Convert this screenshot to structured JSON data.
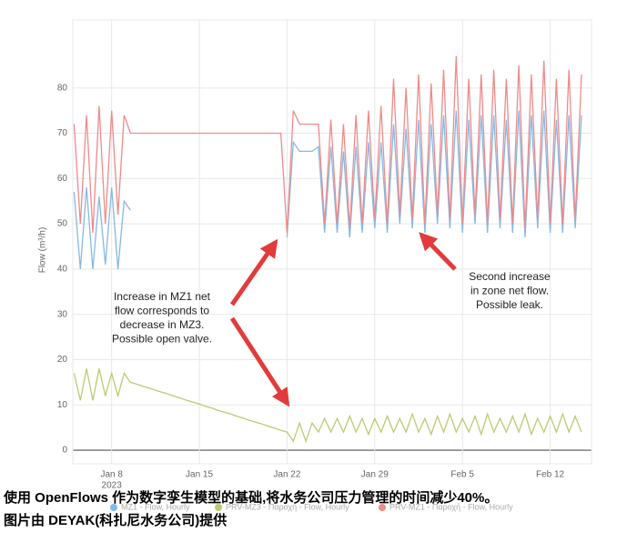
{
  "chart_data": {
    "type": "line",
    "y_label": "Flow (m³/h)",
    "x": [
      5,
      5.5,
      6,
      6.5,
      7,
      7.5,
      8,
      8.5,
      9,
      9.5,
      10,
      10.5,
      11,
      11.5,
      12,
      12.5,
      13,
      13.5,
      14,
      14.5,
      15,
      15.5,
      16,
      16.5,
      17,
      17.5,
      18,
      18.5,
      19,
      19.5,
      20,
      20.5,
      21,
      21.5,
      22,
      22.5,
      23,
      23.5,
      24,
      24.5,
      25,
      25.5,
      26,
      26.5,
      27,
      27.5,
      28,
      28.5,
      29,
      29.5,
      30,
      30.5,
      31,
      31.5,
      32,
      32.5,
      33,
      33.5,
      34,
      34.5,
      35,
      35.5,
      36,
      36.5,
      37,
      37.5,
      38,
      38.5,
      39,
      39.5,
      40,
      40.5,
      41,
      41.5,
      42,
      42.5,
      43,
      43.5,
      44,
      44.5,
      45,
      45.5
    ],
    "series": [
      {
        "name": "MZ1 - Flow, Hourly",
        "color": "#86b9e3",
        "values": [
          57,
          40,
          58,
          40,
          56,
          41,
          58,
          40,
          55,
          53,
          null,
          null,
          null,
          null,
          null,
          null,
          null,
          null,
          null,
          null,
          null,
          null,
          null,
          null,
          null,
          null,
          null,
          null,
          null,
          null,
          null,
          null,
          null,
          null,
          47,
          68,
          66,
          66,
          66,
          67,
          48,
          67,
          48,
          66,
          47,
          67,
          48,
          68,
          49,
          68,
          48,
          72,
          50,
          71,
          49,
          73,
          48,
          72,
          50,
          74,
          49,
          75,
          48,
          73,
          50,
          74,
          48,
          74,
          49,
          73,
          48,
          75,
          47,
          74,
          49,
          75,
          48,
          73,
          48,
          74,
          49,
          74
        ]
      },
      {
        "name": "PRV-MZ3 - Παροχή - Flow, Hourly",
        "color": "#b9cc72",
        "values": [
          17,
          11,
          18,
          11,
          18,
          12,
          17,
          12,
          17,
          15,
          14.6,
          14.1,
          13.7,
          13.2,
          12.8,
          12.4,
          11.9,
          11.5,
          11.0,
          10.6,
          10.2,
          9.7,
          9.3,
          8.8,
          8.4,
          8.0,
          7.5,
          7.1,
          6.6,
          6.2,
          5.8,
          5.3,
          4.9,
          4.4,
          4,
          2,
          6,
          2,
          6,
          4,
          7,
          4,
          7,
          4,
          7.5,
          4,
          7,
          3.5,
          7,
          4,
          7.5,
          4,
          7,
          4,
          8,
          4,
          7,
          3.5,
          7.5,
          4,
          8,
          4,
          7,
          4,
          7.5,
          3.5,
          8,
          4,
          7,
          4,
          7.5,
          4,
          8,
          3.5,
          7,
          4,
          7.5,
          4,
          8,
          4,
          7.5,
          4
        ]
      },
      {
        "name": "PRV-MZ1 - Παροχή - Flow, Hourly",
        "color": "#f08a8a",
        "values": [
          72,
          50,
          74,
          48,
          76,
          50,
          75,
          52,
          74,
          70,
          70,
          70,
          70,
          70,
          70,
          70,
          70,
          70,
          70,
          70,
          70,
          70,
          70,
          70,
          70,
          70,
          70,
          70,
          70,
          70,
          70,
          70,
          70,
          70,
          48,
          75,
          72,
          72,
          72,
          72,
          50,
          73,
          50,
          72,
          49,
          74,
          50,
          75,
          51,
          76,
          50,
          82,
          52,
          80,
          51,
          83,
          50,
          81,
          52,
          84,
          51,
          87,
          50,
          82,
          52,
          83,
          50,
          84,
          51,
          82,
          50,
          85,
          49,
          83,
          51,
          86,
          50,
          82,
          50,
          84,
          51,
          83
        ]
      }
    ],
    "xlim": [
      4.9,
      46.3
    ],
    "xticks": [
      {
        "value": 8,
        "label": "Jan 8"
      },
      {
        "value": 15,
        "label": "Jan 15"
      },
      {
        "value": 22,
        "label": "Jan 22"
      },
      {
        "value": 29,
        "label": "Jan 29"
      },
      {
        "value": 36,
        "label": "Feb 5"
      },
      {
        "value": 43,
        "label": "Feb 12"
      }
    ],
    "x_sublabel": "2023",
    "ylim": [
      -3,
      95
    ],
    "yticks": [
      0,
      10,
      20,
      30,
      40,
      50,
      60,
      70,
      80
    ],
    "grid": true,
    "legend": "bottom",
    "annotations": [
      {
        "lines": [
          "Increase in MZ1 net",
          "flow corresponds to",
          "decrease in MZ3.",
          "Possible open valve."
        ]
      },
      {
        "lines": [
          "Second increase",
          "in zone net flow.",
          "Possible leak."
        ]
      }
    ]
  },
  "caption": [
    "使用 OpenFlows 作为数字孪生模型的基础,将水务公司压力管理的时间减少40%。",
    "图片由 DEYAK(科扎尼水务公司)提供"
  ]
}
